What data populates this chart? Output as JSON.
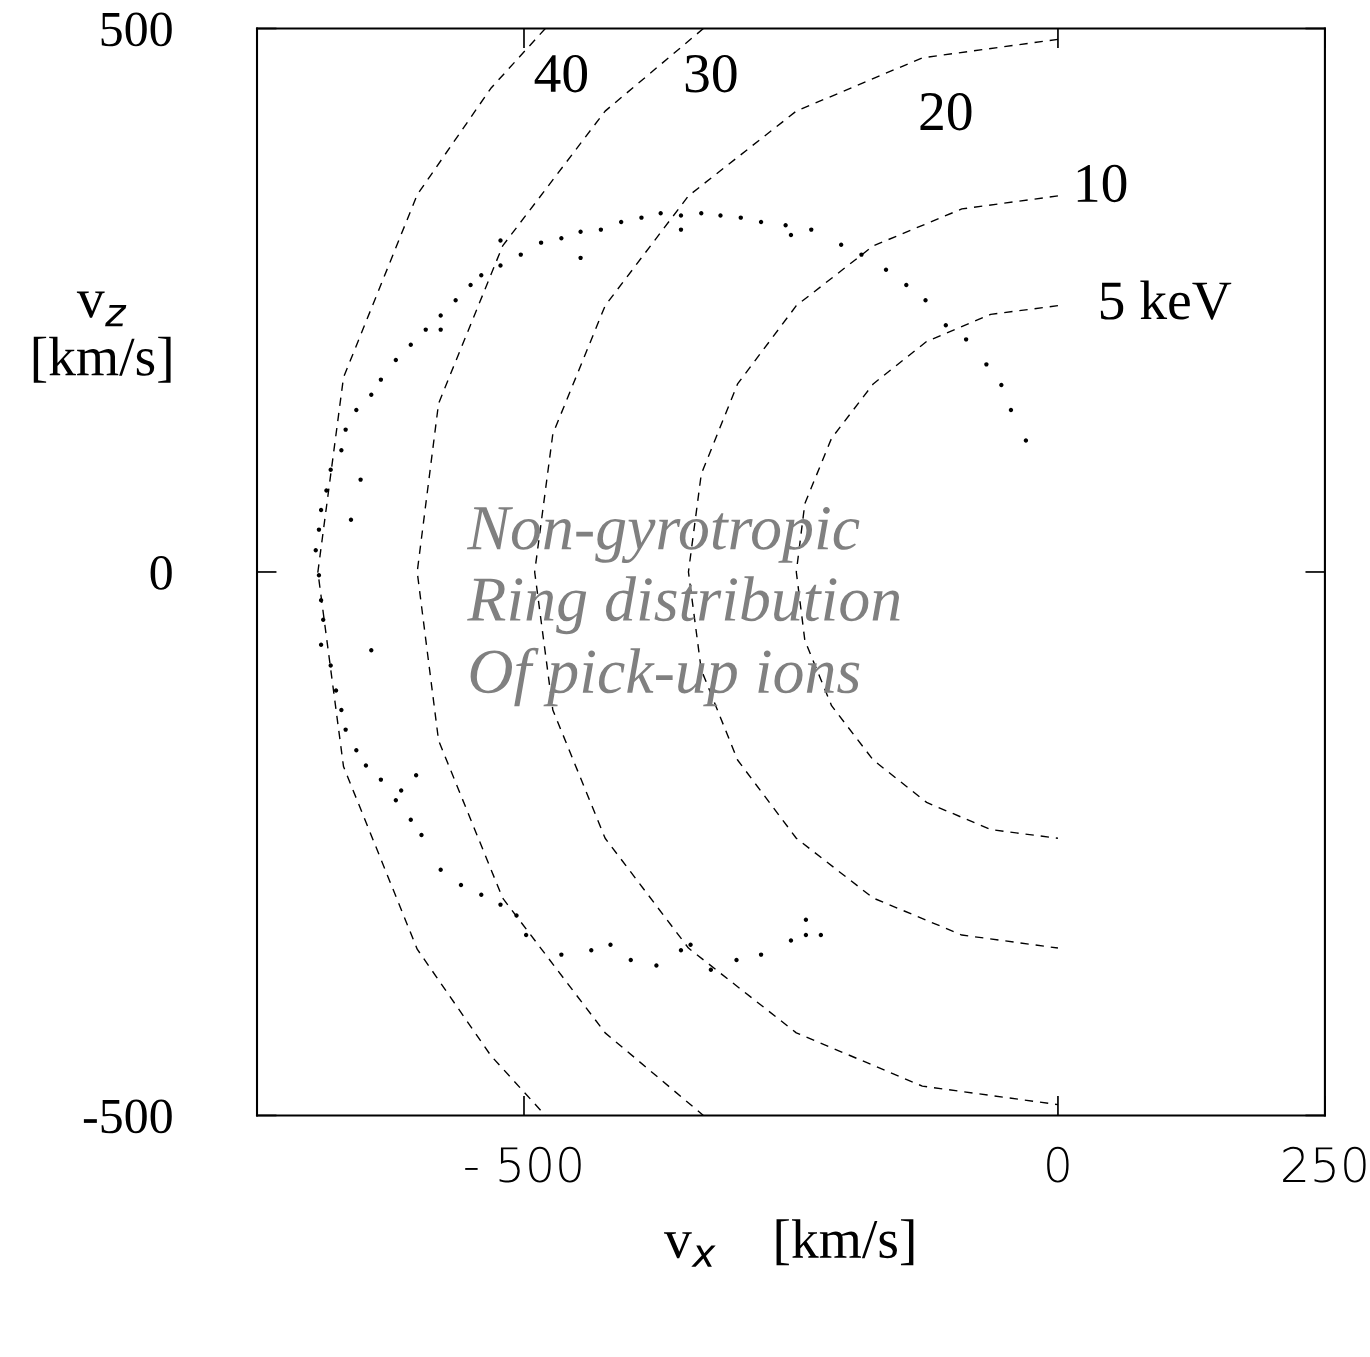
{
  "chart_data": {
    "type": "scatter",
    "xlabel": "v$_{x}$    [km/s]",
    "ylabel": "v$_{z}$\n[km/s]",
    "xlim": [
      -750,
      250
    ],
    "ylim": [
      -500,
      500
    ],
    "xticks": [
      {
        "value": -500,
        "label": "- 500"
      },
      0,
      250
    ],
    "yticks": [
      -500,
      0,
      500
    ],
    "grid": false,
    "legend": false,
    "series": [
      {
        "color": "#000000",
        "marker": "circle",
        "x": [
          -30,
          -44,
          -53,
          -67,
          -86,
          -105,
          -124,
          -142,
          -161,
          -184,
          -203,
          -231,
          -255,
          -278,
          -297,
          -316,
          -334,
          -353,
          -372,
          -390,
          -409,
          -428,
          -447,
          -465,
          -484,
          -503,
          -522,
          -540,
          -550,
          -564,
          -578,
          -592,
          -606,
          -620,
          -634,
          -643,
          -657,
          -667,
          -671,
          -681,
          -685,
          -690,
          -692,
          -695,
          -692,
          -690,
          -688,
          -690,
          -681,
          -676,
          -671,
          -667,
          -657,
          -648,
          -634,
          -620,
          -606,
          -596,
          -578,
          -559,
          -540,
          -522,
          -507,
          -498,
          -465,
          -437,
          -419,
          -400,
          -376,
          -353,
          -344,
          -325,
          -301,
          -278,
          -250,
          -236,
          -222,
          -236,
          -653,
          -643,
          -615,
          -601,
          -662,
          -578,
          -522,
          -447,
          -353,
          -250
        ],
        "values": [
          121,
          149,
          172,
          191,
          214,
          227,
          250,
          264,
          278,
          292,
          301,
          315,
          319,
          322,
          326,
          328,
          330,
          328,
          330,
          326,
          322,
          315,
          313,
          307,
          303,
          292,
          282,
          273,
          264,
          250,
          236,
          223,
          209,
          195,
          177,
          163,
          149,
          131,
          112,
          94,
          75,
          57,
          39,
          20,
          -3,
          -26,
          -44,
          -67,
          -86,
          -109,
          -127,
          -145,
          -164,
          -178,
          -191,
          -210,
          -228,
          -242,
          -274,
          -288,
          -297,
          -306,
          -316,
          -334,
          -352,
          -348,
          -343,
          -357,
          -362,
          -348,
          -343,
          -366,
          -357,
          -352,
          -339,
          -334,
          -334,
          -320,
          85,
          -72,
          -201,
          -187,
          48,
          223,
          305,
          289,
          315,
          310
        ]
      },
      {
        "type": "line",
        "color": "#000000",
        "marker": "none",
        "line_style": "dashed",
        "x": [
          0,
          -63,
          -123,
          -173,
          -212,
          -237,
          -245,
          -237,
          -212,
          -173,
          -123,
          -63,
          0
        ],
        "values": [
          245,
          237,
          212,
          173,
          123,
          63,
          0,
          -63,
          -123,
          -173,
          -212,
          -237,
          -245
        ]
      },
      {
        "type": "line",
        "color": "#000000",
        "marker": "none",
        "line_style": "dashed",
        "x": [
          0,
          -90,
          -173,
          -245,
          -300,
          -334,
          -346,
          -334,
          -300,
          -245,
          -173,
          -90,
          0
        ],
        "values": [
          346,
          334,
          300,
          245,
          173,
          90,
          0,
          -90,
          -173,
          -245,
          -300,
          -334,
          -346
        ]
      },
      {
        "type": "line",
        "color": "#000000",
        "marker": "none",
        "line_style": "dashed",
        "x": [
          0,
          -127,
          -245,
          -346,
          -424,
          -473,
          -490,
          -473,
          -424,
          -346,
          -245,
          -127,
          0
        ],
        "values": [
          490,
          473,
          424,
          346,
          245,
          127,
          0,
          -127,
          -245,
          -346,
          -424,
          -473,
          -490
        ]
      },
      {
        "type": "line",
        "color": "#000000",
        "marker": "none",
        "line_style": "dashed",
        "x": [
          -332,
          -424,
          -520,
          -580,
          -600,
          -580,
          -520,
          -424,
          -332
        ],
        "values": [
          500,
          424,
          300,
          155,
          0,
          -155,
          -300,
          -424,
          -500
        ]
      },
      {
        "type": "line",
        "color": "#000000",
        "marker": "none",
        "line_style": "dashed",
        "x": [
          -480,
          -531,
          -600,
          -669,
          -693,
          -669,
          -600,
          -531,
          -480
        ],
        "values": [
          500,
          445,
          347,
          179,
          0,
          -179,
          -347,
          -445,
          -500
        ]
      }
    ],
    "annotations": [
      "40",
      "30",
      "20",
      "10",
      "5 keV",
      "Non-gyrotropic\nRing distribution\nOf pick-up ions"
    ]
  }
}
